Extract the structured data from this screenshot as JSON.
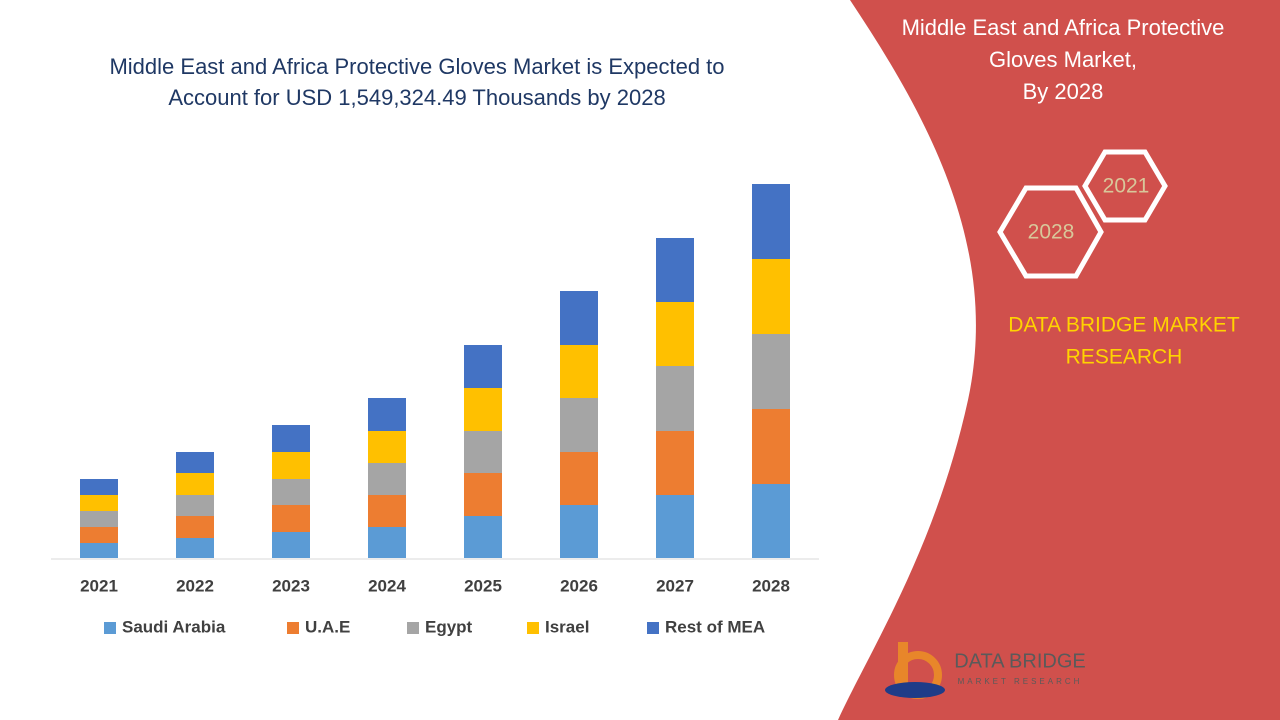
{
  "chart_data": {
    "type": "bar",
    "stacked": true,
    "title": [
      "Middle East and Africa Protective Gloves Market is Expected to",
      "Account for USD 1,549,324.49 Thousands by 2028"
    ],
    "categories": [
      "2021",
      "2022",
      "2023",
      "2024",
      "2025",
      "2026",
      "2027",
      "2028"
    ],
    "series": [
      {
        "name": "Saudi Arabia",
        "color": "#5b9bd5",
        "values": [
          15,
          20,
          26,
          31,
          42,
          53,
          63,
          74
        ]
      },
      {
        "name": "U.A.E",
        "color": "#ed7d31",
        "values": [
          16,
          22,
          27,
          32,
          43,
          53,
          64,
          75
        ]
      },
      {
        "name": "Egypt",
        "color": "#a5a5a5",
        "values": [
          16,
          21,
          26,
          32,
          42,
          54,
          65,
          75
        ]
      },
      {
        "name": "Israel",
        "color": "#ffc000",
        "values": [
          16,
          22,
          27,
          32,
          43,
          53,
          64,
          75
        ]
      },
      {
        "name": "Rest of MEA",
        "color": "#4472c4",
        "values": [
          16,
          21,
          27,
          33,
          43,
          54,
          64,
          75
        ]
      }
    ],
    "legend": "bottom"
  },
  "panel": {
    "title": [
      "Middle East and Africa Protective",
      "Gloves Market,",
      "By 2028"
    ],
    "hexagons": [
      "2021",
      "2028"
    ],
    "brand": [
      "DATA BRIDGE MARKET",
      "RESEARCH"
    ],
    "logo": [
      "DATA BRIDGE",
      "MARKET RESEARCH"
    ]
  }
}
